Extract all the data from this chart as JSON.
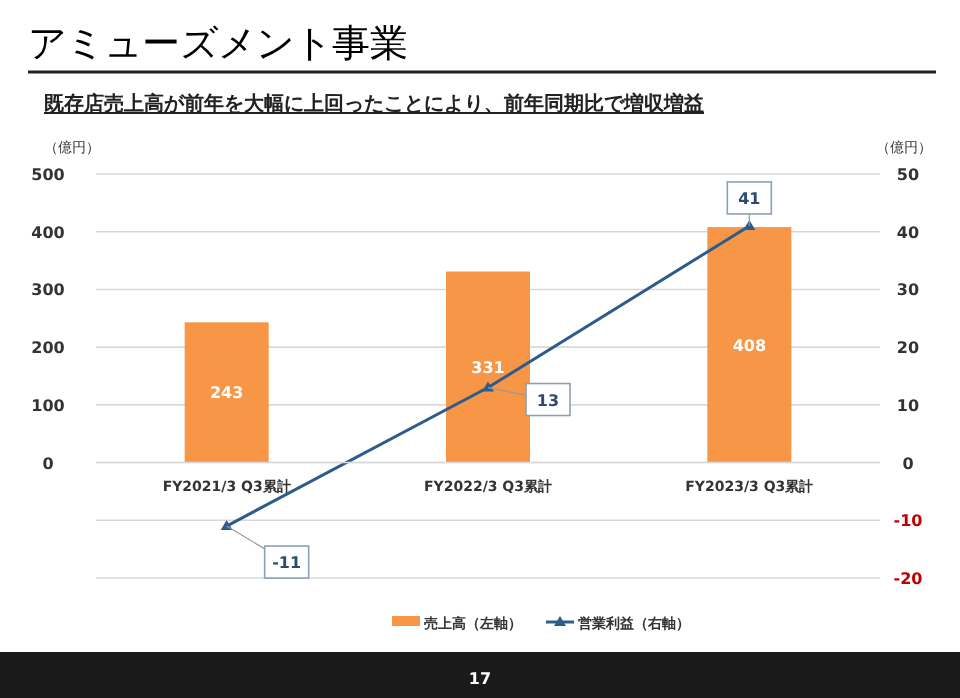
{
  "chart_data": {
    "type": "bar",
    "title": "アミューズメント事業",
    "subtitle": "既存店売上高が前年を大幅に上回ったことにより、前年同期比で増収増益",
    "ylabel": "（億円）",
    "y2label": "（億円）",
    "categories": [
      "FY2021/3 Q3累計",
      "FY2022/3 Q3累計",
      "FY2023/3 Q3累計"
    ],
    "series": [
      {
        "name": "売上高（左軸）",
        "color": "#f79646",
        "values": [
          243,
          331,
          408
        ]
      },
      {
        "name": "営業利益（右軸）",
        "type": "line",
        "axis": "y2",
        "color": "#2e5c8a",
        "marker": "triangle",
        "values": [
          -11,
          13,
          41
        ]
      }
    ],
    "ylim": [
      -200,
      500
    ],
    "yticks": [
      0,
      100,
      200,
      300,
      400,
      500
    ],
    "y2lim": [
      -20,
      50
    ],
    "y2ticks": [
      -20,
      -10,
      0,
      10,
      20,
      30,
      40,
      50
    ],
    "grid": true,
    "legend": "bottom",
    "data_labels": true,
    "annotations": [
      "17"
    ]
  }
}
